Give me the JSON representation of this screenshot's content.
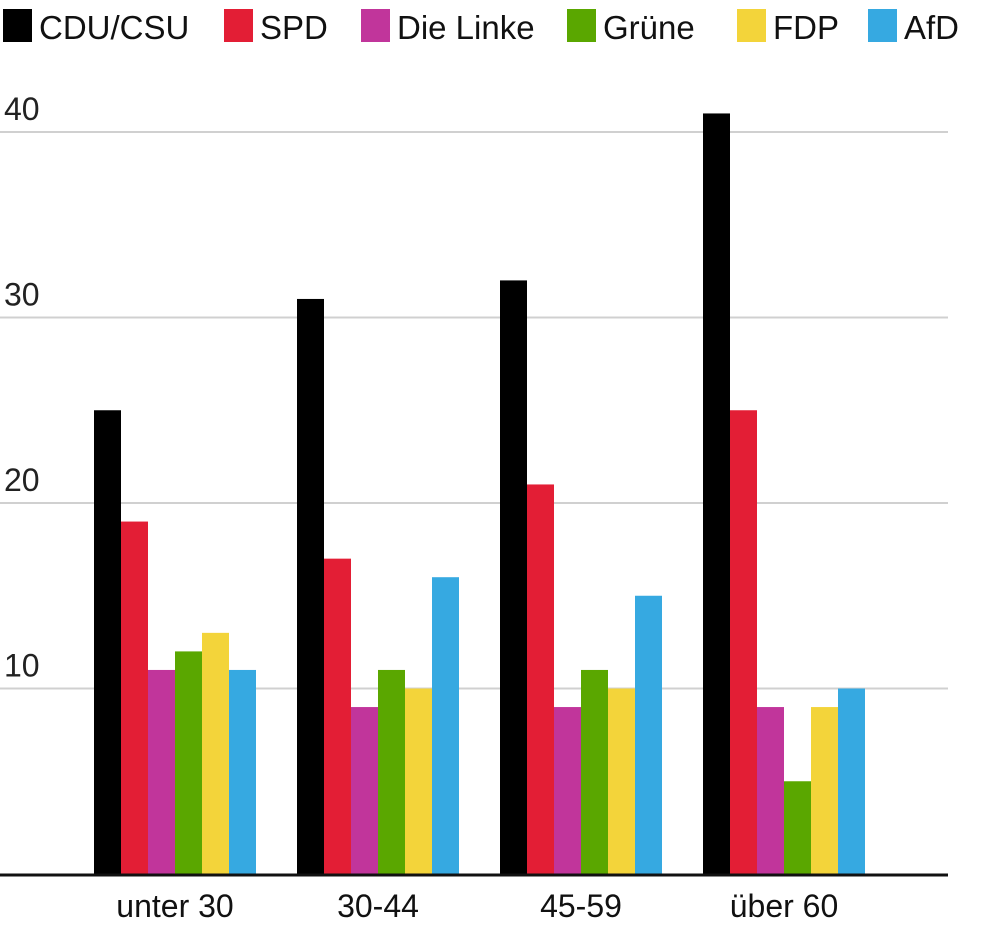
{
  "chart_data": {
    "type": "bar",
    "title": "",
    "xlabel": "",
    "ylabel": "",
    "categories": [
      "unter 30",
      "30-44",
      "45-59",
      "über 60"
    ],
    "series": [
      {
        "name": "CDU/CSU",
        "color": "#000000",
        "values": [
          25,
          31,
          32,
          41
        ]
      },
      {
        "name": "SPD",
        "color": "#e31e35",
        "values": [
          19,
          17,
          21,
          25
        ]
      },
      {
        "name": "Die Linke",
        "color": "#c1359b",
        "values": [
          11,
          9,
          9,
          9
        ]
      },
      {
        "name": "Grüne",
        "color": "#5aa700",
        "values": [
          12,
          11,
          11,
          5
        ]
      },
      {
        "name": "FDP",
        "color": "#f3d43a",
        "values": [
          13,
          10,
          10,
          9
        ]
      },
      {
        "name": "AfD",
        "color": "#36a9e1",
        "values": [
          11,
          16,
          15,
          10
        ]
      }
    ],
    "ylim": [
      0,
      40
    ],
    "yticks": [
      10,
      20,
      30,
      40
    ],
    "grid": true,
    "legend_position": "top"
  }
}
